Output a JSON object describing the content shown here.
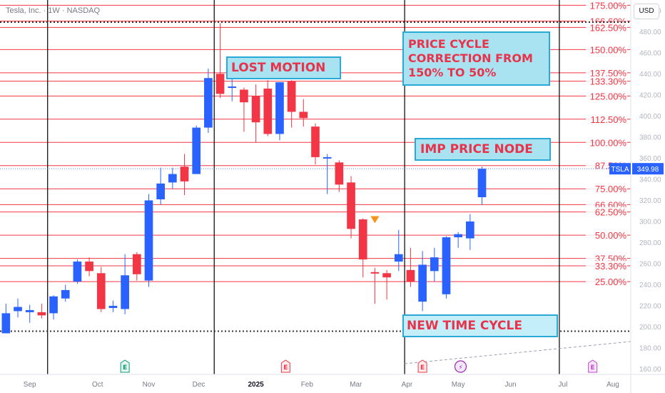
{
  "header": {
    "symbol_line": "Tesla, Inc. · 1W · NASDAQ"
  },
  "currency_button": "USD",
  "price_tag": {
    "symbol": "TSLA",
    "value": "349.98"
  },
  "annotations": {
    "lost_motion": "LOST MOTION",
    "price_cycle": "PRICE CYCLE\nCORRECTION FROM\n150% TO 50%",
    "imp_price_node": "IMP PRICE NODE",
    "new_time_cycle": "NEW TIME CYCLE"
  },
  "colors": {
    "up": "#2962ff",
    "down": "#f23645",
    "level": "#f23645",
    "cycle": "#000000",
    "annotation_bg": "#a9e3f2",
    "annotation_border": "#2aa8d6",
    "annotation_text": "#e8334a",
    "marker": "#f7931a"
  },
  "chart_data": {
    "type": "candlestick",
    "timeframe": "1W",
    "y_range": [
      155,
      510
    ],
    "y_ticks": [
      160,
      180,
      200,
      220,
      240,
      260,
      280,
      300,
      320,
      340,
      360,
      380,
      400,
      420,
      440,
      460,
      480,
      500
    ],
    "x_labels": [
      {
        "label": "Sep",
        "week": 2
      },
      {
        "label": "Oct",
        "week": 7.7
      },
      {
        "label": "Nov",
        "week": 12
      },
      {
        "label": "Dec",
        "week": 16.2
      },
      {
        "label": "2025",
        "week": 21
      },
      {
        "label": "Feb",
        "week": 25.3
      },
      {
        "label": "Mar",
        "week": 29.4
      },
      {
        "label": "Apr",
        "week": 33.7
      },
      {
        "label": "May",
        "week": 38
      },
      {
        "label": "Jun",
        "week": 42.4
      },
      {
        "label": "Jul",
        "week": 46.8
      },
      {
        "label": "Aug",
        "week": 51
      }
    ],
    "x_range": [
      -0.5,
      52.5
    ],
    "candles": [
      {
        "o": 194,
        "h": 222,
        "c": 213,
        "l": 196
      },
      {
        "o": 215,
        "h": 227,
        "c": 219,
        "l": 209
      },
      {
        "o": 214,
        "h": 221,
        "c": 216,
        "l": 204
      },
      {
        "o": 214,
        "h": 222,
        "c": 211,
        "l": 208
      },
      {
        "o": 213,
        "h": 230,
        "c": 229,
        "l": 207
      },
      {
        "o": 227,
        "h": 240,
        "c": 235,
        "l": 224
      },
      {
        "o": 243,
        "h": 264,
        "c": 262,
        "l": 241
      },
      {
        "o": 262,
        "h": 266,
        "c": 253,
        "l": 248
      },
      {
        "o": 251,
        "h": 257,
        "c": 217,
        "l": 214
      },
      {
        "o": 218,
        "h": 225,
        "c": 220,
        "l": 214
      },
      {
        "o": 217,
        "h": 269,
        "c": 249,
        "l": 212
      },
      {
        "o": 269,
        "h": 271,
        "c": 250,
        "l": 244
      },
      {
        "o": 244,
        "h": 326,
        "c": 320,
        "l": 238
      },
      {
        "o": 321,
        "h": 351,
        "c": 336,
        "l": 316
      },
      {
        "o": 337,
        "h": 351,
        "c": 345,
        "l": 331
      },
      {
        "o": 352,
        "h": 364,
        "c": 338,
        "l": 325
      },
      {
        "o": 345,
        "h": 391,
        "c": 389,
        "l": 345
      },
      {
        "o": 389,
        "h": 445,
        "c": 436,
        "l": 384
      },
      {
        "o": 440,
        "h": 488,
        "c": 421,
        "l": 417
      },
      {
        "o": 428,
        "h": 440,
        "c": 428,
        "l": 414
      },
      {
        "o": 425,
        "h": 427,
        "c": 413,
        "l": 385
      },
      {
        "o": 419,
        "h": 430,
        "c": 394,
        "l": 375
      },
      {
        "o": 426,
        "h": 434,
        "c": 383,
        "l": 381
      },
      {
        "o": 383,
        "h": 432,
        "c": 432,
        "l": 377
      },
      {
        "o": 433,
        "h": 434,
        "c": 404,
        "l": 389
      },
      {
        "o": 404,
        "h": 416,
        "c": 398,
        "l": 390
      },
      {
        "o": 390,
        "h": 393,
        "c": 361,
        "l": 354
      },
      {
        "o": 361,
        "h": 364,
        "c": 361,
        "l": 326
      },
      {
        "o": 356,
        "h": 358,
        "c": 335,
        "l": 328
      },
      {
        "o": 337,
        "h": 343,
        "c": 293,
        "l": 284
      },
      {
        "o": 302,
        "h": 303,
        "c": 264,
        "l": 247
      },
      {
        "o": 252,
        "h": 256,
        "c": 251,
        "l": 222
      },
      {
        "o": 251,
        "h": 254,
        "c": 247,
        "l": 226
      },
      {
        "o": 262,
        "h": 292,
        "c": 269,
        "l": 253
      },
      {
        "o": 254,
        "h": 275,
        "c": 243,
        "l": 238
      },
      {
        "o": 224,
        "h": 272,
        "c": 259,
        "l": 215
      },
      {
        "o": 253,
        "h": 275,
        "c": 266,
        "l": 243
      },
      {
        "o": 231,
        "h": 286,
        "c": 285,
        "l": 227
      },
      {
        "o": 285,
        "h": 290,
        "c": 288,
        "l": 275
      },
      {
        "o": 284,
        "h": 307,
        "c": 300,
        "l": 273
      },
      {
        "o": 323,
        "h": 352,
        "c": 350,
        "l": 316
      }
    ],
    "levels": [
      {
        "label": "175.00%",
        "price": 505
      },
      {
        "label": "166.60%",
        "price": 490
      },
      {
        "label": "162.50%",
        "price": 484
      },
      {
        "label": "150.00%",
        "price": 463
      },
      {
        "label": "137.50%",
        "price": 441
      },
      {
        "label": "133.30%",
        "price": 433
      },
      {
        "label": "125.00%",
        "price": 419
      },
      {
        "label": "112.50%",
        "price": 397
      },
      {
        "label": "100.00%",
        "price": 375
      },
      {
        "label": "87.50%",
        "price": 353
      },
      {
        "label": "75.00%",
        "price": 331
      },
      {
        "label": "66.60%",
        "price": 316
      },
      {
        "label": "62.50%",
        "price": 309
      },
      {
        "label": "50.00%",
        "price": 287
      },
      {
        "label": "37.50%",
        "price": 265
      },
      {
        "label": "33.30%",
        "price": 258
      },
      {
        "label": "25.00%",
        "price": 243
      }
    ],
    "time_cycle_weeks": [
      3.5,
      17.5,
      33.5,
      46.5
    ],
    "event_badges": [
      {
        "label": "E",
        "week": 10
      },
      {
        "label": "E",
        "week": 23.5
      },
      {
        "label": "E",
        "week": 35
      },
      {
        "label": "⚡",
        "week": 38.2
      },
      {
        "label": "E",
        "week": 49.3
      }
    ],
    "marker": {
      "week": 31,
      "price": 301
    },
    "dotted_lines": [
      489,
      196
    ],
    "dotted_current": 350
  }
}
